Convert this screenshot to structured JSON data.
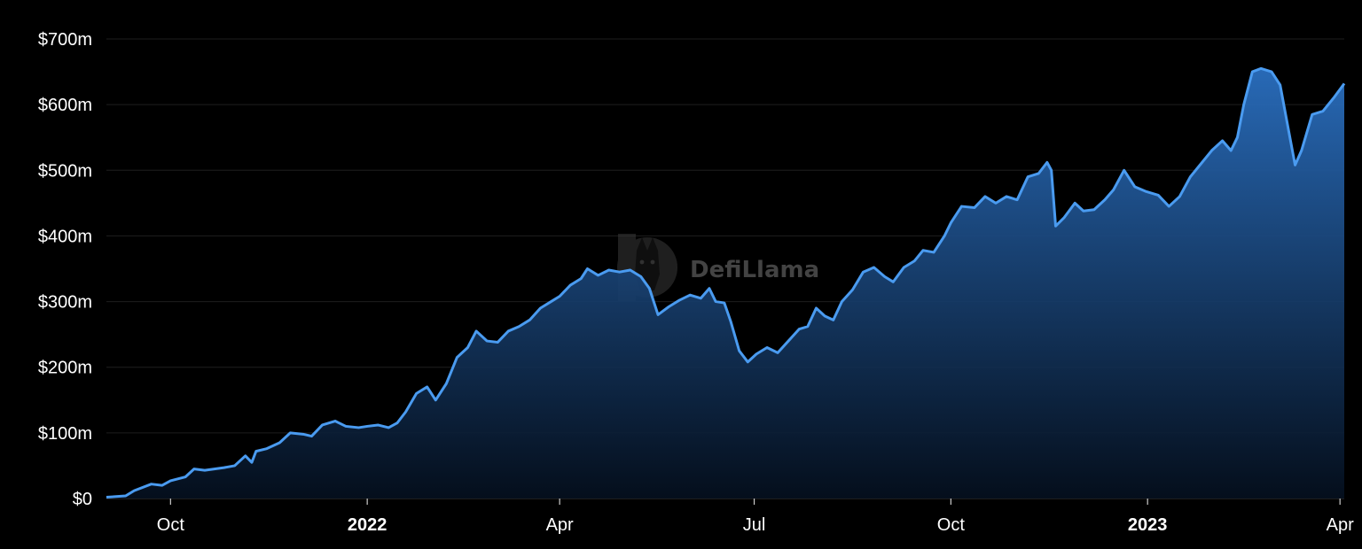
{
  "watermark": {
    "text": "DefiLlama",
    "icon": "llama-logo-icon"
  },
  "colors": {
    "background": "#000000",
    "line": "#4a9bf0",
    "area_top": "#2a6fc0",
    "area_bottom": "#05101f",
    "grid": "#1e1e1e",
    "tick_text": "#ffffff"
  },
  "chart_data": {
    "type": "area",
    "title": "",
    "xlabel": "",
    "ylabel": "",
    "x_range": [
      "2021-09-01",
      "2023-04-03"
    ],
    "ylim": [
      0,
      700
    ],
    "y_unit": "million USD",
    "grid": "horizontal",
    "y_ticks": [
      {
        "value": 0,
        "label": "$0"
      },
      {
        "value": 100,
        "label": "$100m"
      },
      {
        "value": 200,
        "label": "$200m"
      },
      {
        "value": 300,
        "label": "$300m"
      },
      {
        "value": 400,
        "label": "$400m"
      },
      {
        "value": 500,
        "label": "$500m"
      },
      {
        "value": 600,
        "label": "$600m"
      },
      {
        "value": 700,
        "label": "$700m"
      }
    ],
    "x_ticks": [
      {
        "date": "2021-10-01",
        "label": "Oct",
        "bold": false
      },
      {
        "date": "2022-01-01",
        "label": "2022",
        "bold": true
      },
      {
        "date": "2022-04-01",
        "label": "Apr",
        "bold": false
      },
      {
        "date": "2022-07-01",
        "label": "Jul",
        "bold": false
      },
      {
        "date": "2022-10-01",
        "label": "Oct",
        "bold": false
      },
      {
        "date": "2023-01-01",
        "label": "2023",
        "bold": true
      },
      {
        "date": "2023-04-01",
        "label": "Apr",
        "bold": false
      }
    ],
    "series": [
      {
        "points": [
          [
            "2021-09-01",
            2
          ],
          [
            "2021-09-10",
            4
          ],
          [
            "2021-09-14",
            12
          ],
          [
            "2021-09-22",
            22
          ],
          [
            "2021-09-27",
            20
          ],
          [
            "2021-10-01",
            27
          ],
          [
            "2021-10-08",
            33
          ],
          [
            "2021-10-12",
            45
          ],
          [
            "2021-10-17",
            43
          ],
          [
            "2021-10-26",
            47
          ],
          [
            "2021-10-31",
            50
          ],
          [
            "2021-11-05",
            65
          ],
          [
            "2021-11-08",
            55
          ],
          [
            "2021-11-10",
            72
          ],
          [
            "2021-11-15",
            76
          ],
          [
            "2021-11-21",
            85
          ],
          [
            "2021-11-26",
            100
          ],
          [
            "2021-12-02",
            98
          ],
          [
            "2021-12-06",
            95
          ],
          [
            "2021-12-11",
            112
          ],
          [
            "2021-12-17",
            118
          ],
          [
            "2021-12-22",
            110
          ],
          [
            "2021-12-28",
            108
          ],
          [
            "2022-01-01",
            110
          ],
          [
            "2022-01-06",
            112
          ],
          [
            "2022-01-11",
            108
          ],
          [
            "2022-01-15",
            115
          ],
          [
            "2022-01-19",
            132
          ],
          [
            "2022-01-24",
            160
          ],
          [
            "2022-01-29",
            170
          ],
          [
            "2022-02-02",
            150
          ],
          [
            "2022-02-07",
            175
          ],
          [
            "2022-02-12",
            215
          ],
          [
            "2022-02-17",
            230
          ],
          [
            "2022-02-21",
            255
          ],
          [
            "2022-02-26",
            240
          ],
          [
            "2022-03-03",
            238
          ],
          [
            "2022-03-08",
            255
          ],
          [
            "2022-03-13",
            262
          ],
          [
            "2022-03-18",
            272
          ],
          [
            "2022-03-23",
            290
          ],
          [
            "2022-03-28",
            300
          ],
          [
            "2022-04-01",
            308
          ],
          [
            "2022-04-06",
            325
          ],
          [
            "2022-04-11",
            335
          ],
          [
            "2022-04-14",
            350
          ],
          [
            "2022-04-19",
            340
          ],
          [
            "2022-04-24",
            348
          ],
          [
            "2022-04-29",
            345
          ],
          [
            "2022-05-04",
            348
          ],
          [
            "2022-05-09",
            338
          ],
          [
            "2022-05-13",
            320
          ],
          [
            "2022-05-17",
            280
          ],
          [
            "2022-05-22",
            292
          ],
          [
            "2022-05-27",
            302
          ],
          [
            "2022-06-01",
            310
          ],
          [
            "2022-06-06",
            305
          ],
          [
            "2022-06-10",
            320
          ],
          [
            "2022-06-13",
            300
          ],
          [
            "2022-06-17",
            298
          ],
          [
            "2022-06-20",
            270
          ],
          [
            "2022-06-24",
            225
          ],
          [
            "2022-06-28",
            208
          ],
          [
            "2022-07-02",
            220
          ],
          [
            "2022-07-07",
            230
          ],
          [
            "2022-07-12",
            222
          ],
          [
            "2022-07-17",
            240
          ],
          [
            "2022-07-22",
            258
          ],
          [
            "2022-07-26",
            262
          ],
          [
            "2022-07-30",
            290
          ],
          [
            "2022-08-03",
            278
          ],
          [
            "2022-08-07",
            272
          ],
          [
            "2022-08-11",
            300
          ],
          [
            "2022-08-16",
            318
          ],
          [
            "2022-08-21",
            345
          ],
          [
            "2022-08-26",
            352
          ],
          [
            "2022-08-31",
            338
          ],
          [
            "2022-09-04",
            330
          ],
          [
            "2022-09-09",
            352
          ],
          [
            "2022-09-14",
            362
          ],
          [
            "2022-09-18",
            378
          ],
          [
            "2022-09-23",
            375
          ],
          [
            "2022-09-28",
            400
          ],
          [
            "2022-10-01",
            420
          ],
          [
            "2022-10-06",
            445
          ],
          [
            "2022-10-12",
            443
          ],
          [
            "2022-10-17",
            460
          ],
          [
            "2022-10-22",
            450
          ],
          [
            "2022-10-27",
            460
          ],
          [
            "2022-11-01",
            455
          ],
          [
            "2022-11-06",
            490
          ],
          [
            "2022-11-11",
            495
          ],
          [
            "2022-11-15",
            512
          ],
          [
            "2022-11-17",
            500
          ],
          [
            "2022-11-19",
            415
          ],
          [
            "2022-11-23",
            428
          ],
          [
            "2022-11-28",
            450
          ],
          [
            "2022-12-02",
            438
          ],
          [
            "2022-12-07",
            440
          ],
          [
            "2022-12-12",
            455
          ],
          [
            "2022-12-16",
            470
          ],
          [
            "2022-12-21",
            500
          ],
          [
            "2022-12-26",
            475
          ],
          [
            "2022-12-31",
            468
          ],
          [
            "2023-01-06",
            462
          ],
          [
            "2023-01-11",
            445
          ],
          [
            "2023-01-16",
            460
          ],
          [
            "2023-01-21",
            490
          ],
          [
            "2023-01-26",
            510
          ],
          [
            "2023-01-31",
            530
          ],
          [
            "2023-02-05",
            545
          ],
          [
            "2023-02-09",
            530
          ],
          [
            "2023-02-12",
            550
          ],
          [
            "2023-02-15",
            600
          ],
          [
            "2023-02-19",
            650
          ],
          [
            "2023-02-23",
            655
          ],
          [
            "2023-02-28",
            650
          ],
          [
            "2023-03-04",
            630
          ],
          [
            "2023-03-08",
            560
          ],
          [
            "2023-03-11",
            508
          ],
          [
            "2023-03-14",
            530
          ],
          [
            "2023-03-19",
            585
          ],
          [
            "2023-03-24",
            590
          ],
          [
            "2023-03-29",
            610
          ],
          [
            "2023-04-03",
            632
          ]
        ]
      }
    ]
  }
}
